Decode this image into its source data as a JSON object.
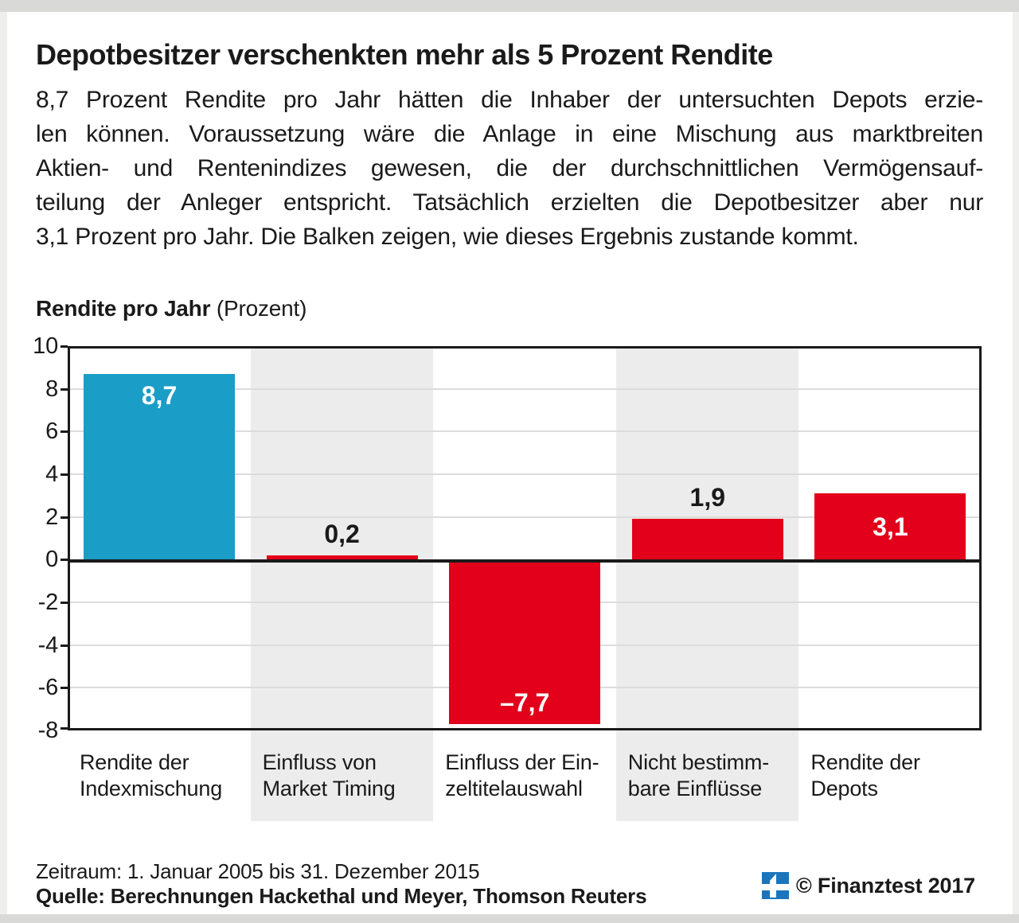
{
  "header": {
    "title": "Depotbesitzer verschenkten mehr als 5 Prozent Rendite",
    "intro_lines": [
      "8,7 Prozent Rendite pro Jahr hätten die Inhaber der untersuchten Depots erzie-",
      "len können. Voraussetzung wäre die Anlage in eine Mischung aus marktbreiten",
      "Aktien- und Rentenindizes gewesen, die der durchschnittlichen Vermögensauf-",
      "teilung der Anleger entspricht. Tatsächlich erzielten die Depotbesitzer aber nur",
      "3,1 Prozent pro Jahr. Die Balken zeigen, wie dieses Ergebnis zustande kommt."
    ]
  },
  "chart_header": {
    "title_bold": "Rendite pro Jahr",
    "title_unit": " (Prozent)"
  },
  "chart_data": {
    "type": "bar",
    "title": "Rendite pro Jahr (Prozent)",
    "xlabel": "",
    "ylabel": "Rendite pro Jahr (Prozent)",
    "categories": [
      "Rendite der Indexmischung",
      "Einfluss von Market Timing",
      "Einfluss der Einzeltitelauswahl",
      "Nicht bestimmbare Einflüsse",
      "Rendite der Depots"
    ],
    "category_lines": [
      [
        "Rendite der",
        "Indexmischung"
      ],
      [
        "Einfluss von",
        "Market Timing"
      ],
      [
        "Einfluss der Ein-",
        "zeltitelauswahl"
      ],
      [
        "Nicht bestimm-",
        "bare Einflüsse"
      ],
      [
        "Rendite der",
        "Depots"
      ]
    ],
    "values": [
      8.7,
      0.2,
      -7.7,
      1.9,
      3.1
    ],
    "value_labels": [
      "8,7",
      "0,2",
      "–7,7",
      "1,9",
      "3,1"
    ],
    "value_label_placements": [
      "inside-top",
      "above",
      "inside-bottom",
      "above",
      "inside-middle"
    ],
    "value_label_colors": [
      "#ffffff",
      "#1a1a1a",
      "#ffffff",
      "#1a1a1a",
      "#ffffff"
    ],
    "bar_colors": [
      "#1a9dc6",
      "#e2001a",
      "#e2001a",
      "#e2001a",
      "#e2001a"
    ],
    "ylim": [
      -8,
      10
    ],
    "yticks": [
      10,
      8,
      6,
      4,
      2,
      0,
      -2,
      -4,
      -6,
      -8
    ],
    "grid": true,
    "legend": "none",
    "highlight_columns": [
      1,
      3
    ]
  },
  "footer": {
    "zeitraum": "Zeitraum: 1. Januar 2005 bis 31. Dezember 2015",
    "quelle": "Quelle: Berechnungen Hackethal und Meyer, Thomson Reuters",
    "copyright": "© Finanztest 2017"
  },
  "colors": {
    "text": "#1a1a1a",
    "bar_blue": "#1a9dc6",
    "bar_red": "#e2001a",
    "band_gray": "#ececec",
    "gridline": "#dcdcdc",
    "frame_gray": "#d9d9d7",
    "logo_blue": "#1c75bc"
  }
}
